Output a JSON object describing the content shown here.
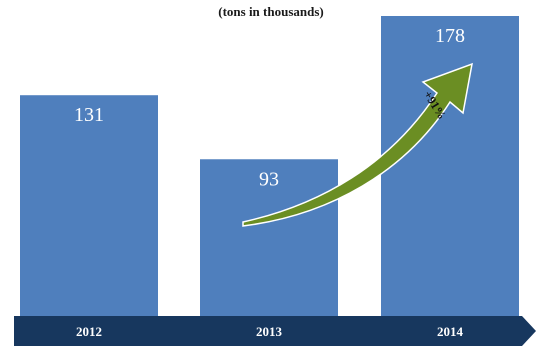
{
  "chart_data": {
    "type": "bar",
    "subtitle": "(tons in thousands)",
    "categories": [
      "2012",
      "2013",
      "2014"
    ],
    "values": [
      131,
      93,
      178
    ],
    "annotation": {
      "text": "+91%",
      "from": "2013",
      "to": "2014"
    },
    "colors": {
      "bar": "#4f7fbd",
      "axis_band": "#17375e",
      "arrow_fill": "#6b8e23",
      "arrow_stroke": "#ffffff"
    }
  }
}
